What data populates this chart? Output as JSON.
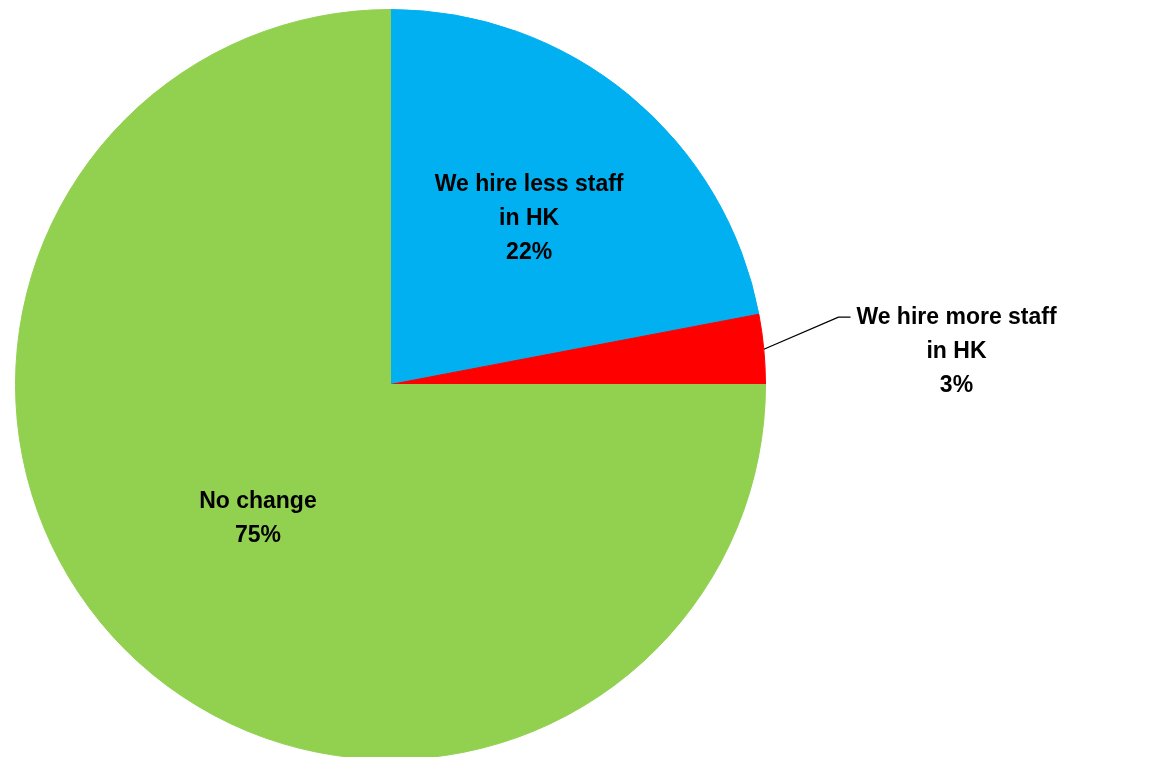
{
  "chart_data": {
    "type": "pie",
    "categories": [
      "We hire less staff in HK",
      "We hire more staff in HK",
      "No change"
    ],
    "values": [
      22,
      3,
      75
    ],
    "colors": [
      "#00b0f0",
      "#ff0000",
      "#92d050"
    ],
    "value_labels": [
      "22%",
      "3%",
      "75%"
    ]
  }
}
